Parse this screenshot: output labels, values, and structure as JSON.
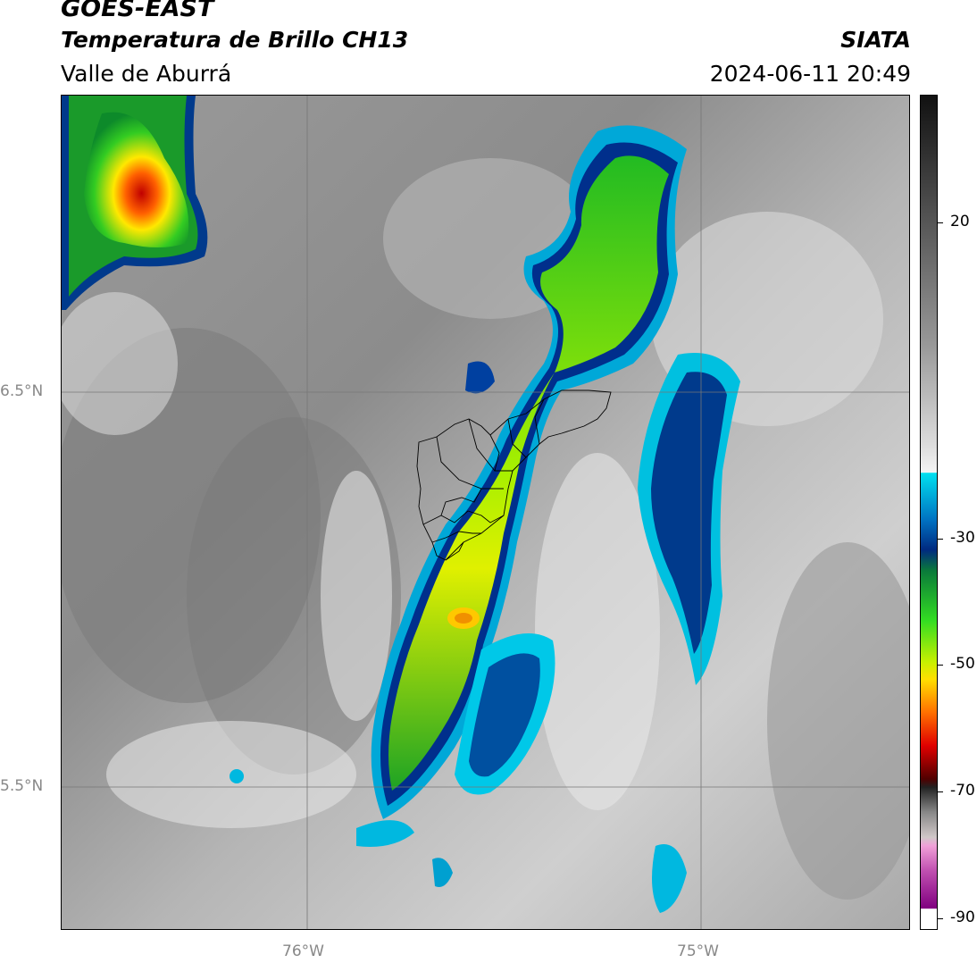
{
  "header": {
    "satellite": "GOES-EAST",
    "product": "Temperatura de Brillo CH13",
    "region": "Valle de Aburrá",
    "org": "SIATA",
    "datetime": "2024-06-11 20:49"
  },
  "axes": {
    "y_ticks": [
      "6.5°N",
      "5.5°N"
    ],
    "x_ticks": [
      "76°W",
      "75°W"
    ]
  },
  "colorbar": {
    "ticks": [
      "20",
      "-30",
      "-50",
      "-70",
      "-90"
    ],
    "scale_colors": {
      "warm": "#1a1a1a",
      "cold_cyan": "#00e0f0",
      "deep_blue": "#003a8c",
      "green": "#22cc22",
      "yellow": "#f0f000",
      "red": "#e00000",
      "magenta": "#e060c0",
      "purple": "#800080"
    }
  },
  "map": {
    "grid_color": "#888888",
    "overlay": "municipal-boundaries"
  }
}
